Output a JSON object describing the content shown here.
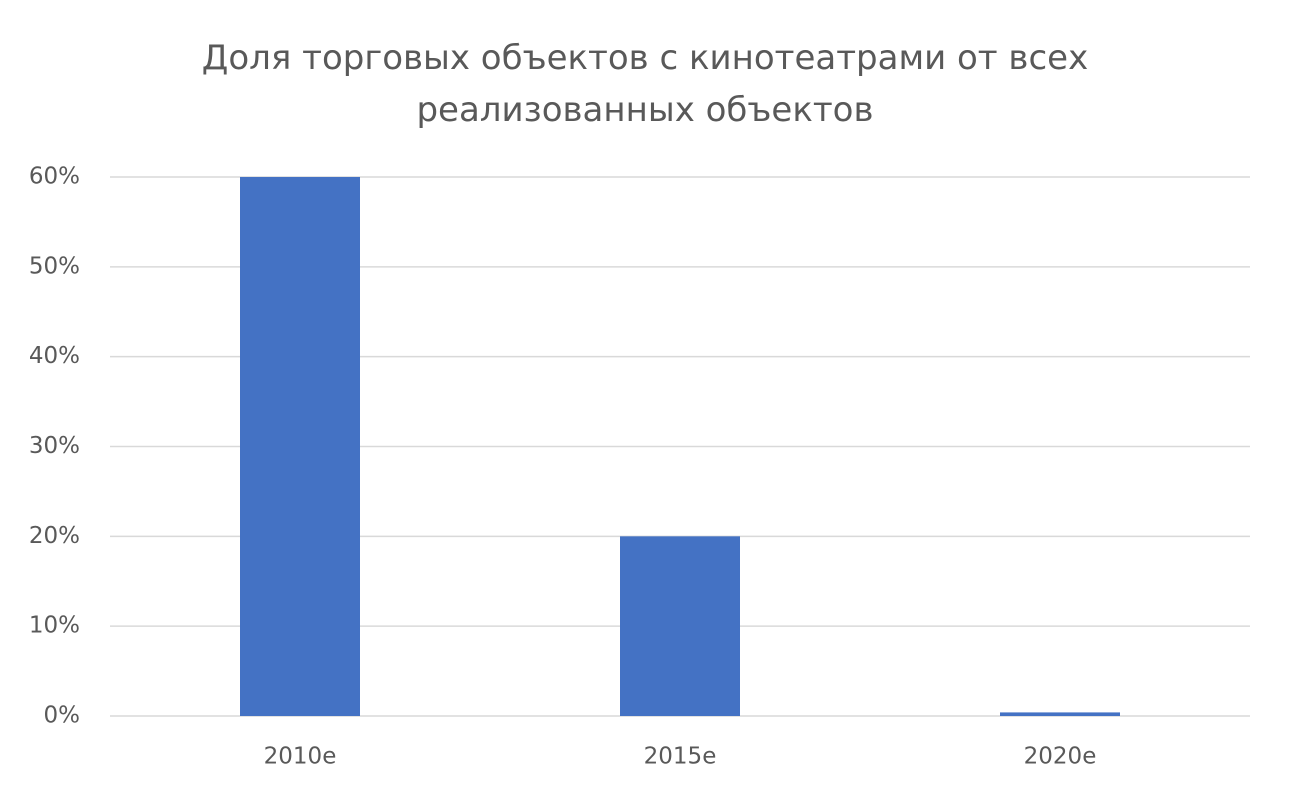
{
  "chart_data": {
    "type": "bar",
    "title": "Доля торговых объектов с кинотеатрами от всех реализованных объектов",
    "categories": [
      "2010е",
      "2015е",
      "2020е"
    ],
    "values": [
      60,
      20,
      0.4
    ],
    "color": "#4472c4",
    "ylim": [
      0,
      60
    ],
    "yticks": [
      {
        "value": 0,
        "label": "0%"
      },
      {
        "value": 10,
        "label": "10%"
      },
      {
        "value": 20,
        "label": "20%"
      },
      {
        "value": 30,
        "label": "30%"
      },
      {
        "value": 40,
        "label": "40%"
      },
      {
        "value": 50,
        "label": "50%"
      },
      {
        "value": 60,
        "label": "60%"
      }
    ],
    "grid": true
  }
}
